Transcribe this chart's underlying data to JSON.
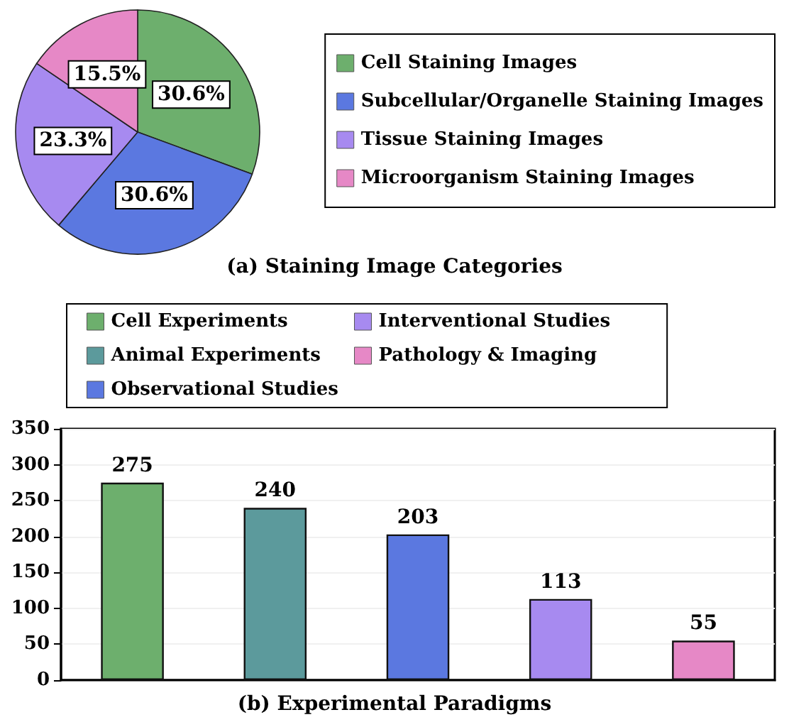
{
  "chart_data": [
    {
      "type": "pie",
      "title": "(a) Staining Image Categories",
      "categories": [
        "Cell Staining Images",
        "Subcellular/Organelle Staining Images",
        "Tissue Staining Images",
        "Microorganism Staining Images"
      ],
      "values": [
        30.6,
        30.6,
        23.3,
        15.5
      ],
      "colors": [
        "#6daf6d",
        "#5b78e0",
        "#a78af0",
        "#e688c6"
      ],
      "value_labels": [
        "30.6%",
        "30.6%",
        "23.3%",
        "15.5%"
      ],
      "legend": "right"
    },
    {
      "type": "bar",
      "title": "(b) Experimental Paradigms",
      "categories": [
        null,
        null,
        null,
        null,
        null
      ],
      "stacked": true,
      "data_labels": true,
      "legend": "top",
      "grid": "y",
      "ylim": [
        0,
        350
      ],
      "yticks": [
        0,
        50,
        100,
        150,
        200,
        250,
        300,
        350
      ],
      "series": [
        {
          "name": "Cell Experiments",
          "color": "#6daf6d",
          "values": [
            275,
            null,
            null,
            null,
            null
          ]
        },
        {
          "name": "Animal Experiments",
          "color": "#5c9a9c",
          "values": [
            null,
            240,
            null,
            null,
            null
          ]
        },
        {
          "name": "Observational Studies",
          "color": "#5b78e0",
          "values": [
            null,
            null,
            203,
            null,
            null
          ]
        },
        {
          "name": "Interventional Studies",
          "color": "#a78af0",
          "values": [
            null,
            null,
            null,
            113,
            null
          ]
        },
        {
          "name": "Pathology & Imaging",
          "color": "#e688c6",
          "values": [
            null,
            null,
            null,
            null,
            55
          ]
        }
      ]
    }
  ]
}
